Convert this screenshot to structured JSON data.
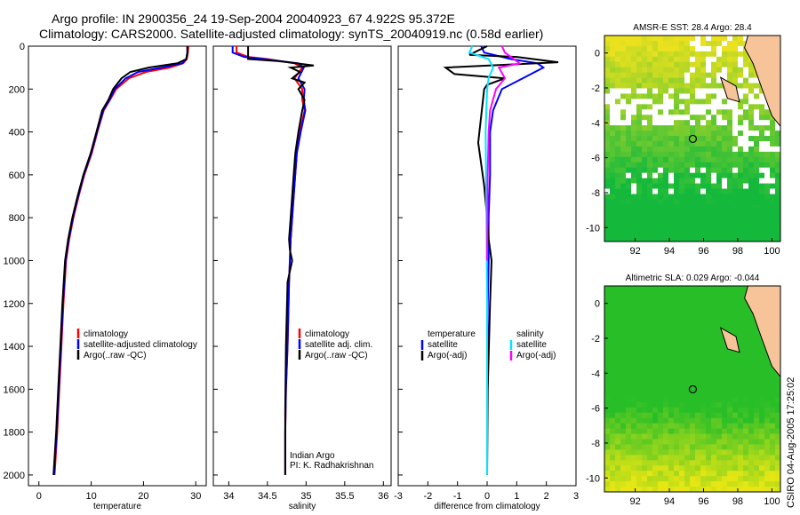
{
  "header": {
    "line1": "Argo profile: IN 2900356_24 19-Sep-2004 20040923_67 4.922S 95.372E",
    "line2": "Climatology: CARS2000. Satellite-adjusted climatology: synTS_20040919.nc (0.58d earlier)"
  },
  "credit": "CSIRO 04-Aug-2005 17:25:02",
  "colors": {
    "climatology": "#ff0000",
    "satellite": "#0000ff",
    "argo": "#000000",
    "cyan": "#00e5ff",
    "magenta": "#ff00ff",
    "land": "#f7c49a"
  },
  "chart_data": [
    {
      "id": "temperature",
      "type": "line",
      "xlabel": "temperature",
      "ylabel": "",
      "xlim": [
        -2,
        32
      ],
      "ylim": [
        2050,
        0
      ],
      "xticks": [
        0,
        10,
        20,
        30
      ],
      "yticks": [
        0,
        200,
        400,
        600,
        800,
        1000,
        1200,
        1400,
        1600,
        1800,
        2000
      ],
      "legend": [
        "climatology",
        "satellite-adjusted climatology",
        "Argo(..raw -QC)"
      ],
      "series": [
        {
          "name": "climatology",
          "color": "#ff0000",
          "x": [
            28.6,
            28.5,
            28.3,
            27.6,
            25.0,
            20.5,
            17.2,
            14.8,
            13.6,
            12.4,
            11.2,
            10.1,
            8.7,
            7.6,
            6.6,
            5.8,
            5.2,
            4.7,
            4.3,
            3.9,
            3.5,
            3.0
          ],
          "depth": [
            0,
            30,
            60,
            80,
            100,
            120,
            150,
            200,
            250,
            300,
            400,
            500,
            600,
            700,
            800,
            900,
            1000,
            1200,
            1400,
            1600,
            1800,
            2000
          ]
        },
        {
          "name": "satellite-adjusted climatology",
          "color": "#0000ff",
          "x": [
            28.4,
            28.4,
            28.2,
            27.4,
            23.5,
            19.0,
            16.6,
            14.5,
            13.5,
            12.3,
            11.1,
            10.0,
            8.6,
            7.5,
            6.5,
            5.7,
            5.1,
            4.6,
            4.2,
            3.8,
            3.4,
            2.9
          ],
          "depth": [
            0,
            30,
            60,
            80,
            100,
            120,
            150,
            200,
            250,
            300,
            400,
            500,
            600,
            700,
            800,
            900,
            1000,
            1200,
            1400,
            1600,
            1800,
            2000
          ]
        },
        {
          "name": "Argo(..raw -QC)",
          "color": "#000000",
          "x": [
            28.4,
            28.4,
            28.2,
            26.5,
            21.0,
            17.5,
            15.8,
            14.2,
            13.3,
            12.1,
            11.0,
            9.9,
            8.5,
            7.4,
            6.4,
            5.6,
            5.0,
            4.5,
            4.1,
            3.7,
            3.3,
            2.8
          ],
          "depth": [
            0,
            30,
            60,
            80,
            100,
            120,
            150,
            200,
            250,
            300,
            400,
            500,
            600,
            700,
            800,
            900,
            1000,
            1200,
            1400,
            1600,
            1800,
            2000
          ]
        }
      ]
    },
    {
      "id": "salinity",
      "type": "line",
      "xlabel": "salinity",
      "ylabel": "",
      "xlim": [
        33.8,
        36.1
      ],
      "ylim": [
        2050,
        0
      ],
      "xticks": [
        34,
        34.5,
        35,
        35.5,
        36
      ],
      "xticklabels": [
        "34",
        "34.5",
        "35",
        "35.5",
        "36"
      ],
      "legend": [
        "climatology",
        "satellite adj. clim.",
        "Argo(..raw -QC)"
      ],
      "annotation": [
        "Indian Argo",
        "PI: K. Radhakrishnan"
      ],
      "series": [
        {
          "name": "climatology",
          "color": "#ff0000",
          "x": [
            34.1,
            34.1,
            34.25,
            34.5,
            34.85,
            34.95,
            34.85,
            34.95,
            34.95,
            34.98,
            34.92,
            34.88,
            34.84,
            34.8,
            34.78,
            34.76,
            34.74,
            34.73,
            34.73
          ],
          "depth": [
            0,
            30,
            50,
            60,
            80,
            100,
            150,
            200,
            250,
            300,
            400,
            500,
            700,
            900,
            1100,
            1400,
            1600,
            1800,
            2000
          ]
        },
        {
          "name": "satellite adj. clim.",
          "color": "#0000ff",
          "x": [
            34.05,
            34.05,
            34.2,
            34.45,
            34.9,
            34.97,
            34.9,
            34.98,
            34.97,
            34.99,
            34.93,
            34.88,
            34.84,
            34.8,
            34.78,
            34.76,
            34.74,
            34.73,
            34.73
          ],
          "depth": [
            0,
            30,
            50,
            60,
            80,
            100,
            150,
            200,
            250,
            300,
            400,
            500,
            700,
            900,
            1100,
            1400,
            1600,
            1800,
            2000
          ]
        },
        {
          "name": "Argo(..raw -QC)",
          "color": "#000000",
          "x": [
            34.25,
            34.25,
            34.25,
            34.65,
            35.1,
            34.8,
            34.92,
            34.82,
            34.98,
            34.9,
            34.98,
            34.95,
            34.9,
            34.86,
            34.84,
            34.82,
            34.8,
            34.78,
            34.79,
            34.82,
            34.76,
            34.74,
            34.73,
            34.73
          ],
          "depth": [
            0,
            30,
            60,
            70,
            90,
            100,
            120,
            150,
            170,
            200,
            250,
            300,
            400,
            500,
            600,
            700,
            800,
            900,
            950,
            1000,
            1100,
            1400,
            1700,
            2000
          ]
        }
      ]
    },
    {
      "id": "difference",
      "type": "line",
      "xlabel": "difference from climatology",
      "ylabel": "",
      "xlim": [
        -3,
        3
      ],
      "ylim": [
        2050,
        0
      ],
      "xticks": [
        -3,
        -2,
        -1,
        0,
        1,
        2,
        3
      ],
      "legend": [
        "temperature",
        "satellite",
        "Argo(-adj)",
        "salinity",
        "satellite",
        "Argo(-adj)"
      ],
      "series": [
        {
          "name": "temperature satellite",
          "color": "#0000ff",
          "x": [
            -0.2,
            -0.1,
            0.8,
            1.7,
            1.9,
            1.2,
            0.5,
            0.2,
            0.1,
            0.1,
            0.05,
            0.05,
            0.02,
            0.0,
            0.0
          ],
          "depth": [
            0,
            30,
            60,
            80,
            100,
            150,
            200,
            300,
            400,
            600,
            800,
            1000,
            1200,
            1600,
            2000
          ]
        },
        {
          "name": "temperature Argo(-adj)",
          "color": "#000000",
          "x": [
            0.0,
            -0.6,
            1.0,
            2.4,
            -1.4,
            -1.1,
            0.6,
            0.0,
            -0.1,
            -0.3,
            -0.1,
            0.0,
            0.05,
            0.15,
            0.1,
            0.02,
            0.0
          ],
          "depth": [
            0,
            40,
            50,
            75,
            100,
            130,
            150,
            180,
            200,
            450,
            650,
            800,
            900,
            1000,
            1200,
            1600,
            2000
          ]
        },
        {
          "name": "salinity satellite",
          "color": "#00e5ff",
          "x": [
            -0.5,
            -0.6,
            0.05,
            0.2,
            0.05,
            0.0,
            -0.05,
            -0.02,
            0.0,
            0.0
          ],
          "depth": [
            0,
            30,
            60,
            100,
            150,
            200,
            400,
            800,
            1200,
            2000
          ]
        },
        {
          "name": "salinity Argo(-adj)",
          "color": "#ff00ff",
          "x": [
            0.5,
            0.6,
            1.1,
            0.4,
            0.6,
            0.3,
            0.1,
            0.05,
            0.02,
            0.0
          ],
          "depth": [
            0,
            30,
            80,
            100,
            150,
            200,
            300,
            400,
            600,
            1000
          ]
        }
      ]
    },
    {
      "id": "sst-map",
      "type": "heatmap",
      "title": "AMSR-E SST: 28.4 Argo: 28.4",
      "xlim": [
        90.2,
        100.5
      ],
      "ylim": [
        -10.8,
        1
      ],
      "xticks": [
        92,
        94,
        96,
        98,
        100
      ],
      "yticks": [
        0,
        -2,
        -4,
        -6,
        -8,
        -10
      ],
      "marker": {
        "lon": 95.372,
        "lat": -4.922
      }
    },
    {
      "id": "sla-map",
      "type": "heatmap",
      "title": "Altimetric SLA: 0.029 Argo: -0.044",
      "xlim": [
        90.2,
        100.5
      ],
      "ylim": [
        -10.8,
        1
      ],
      "xticks": [
        92,
        94,
        96,
        98,
        100
      ],
      "yticks": [
        0,
        -2,
        -4,
        -6,
        -8,
        -10
      ],
      "marker": {
        "lon": 95.372,
        "lat": -4.922
      }
    }
  ]
}
